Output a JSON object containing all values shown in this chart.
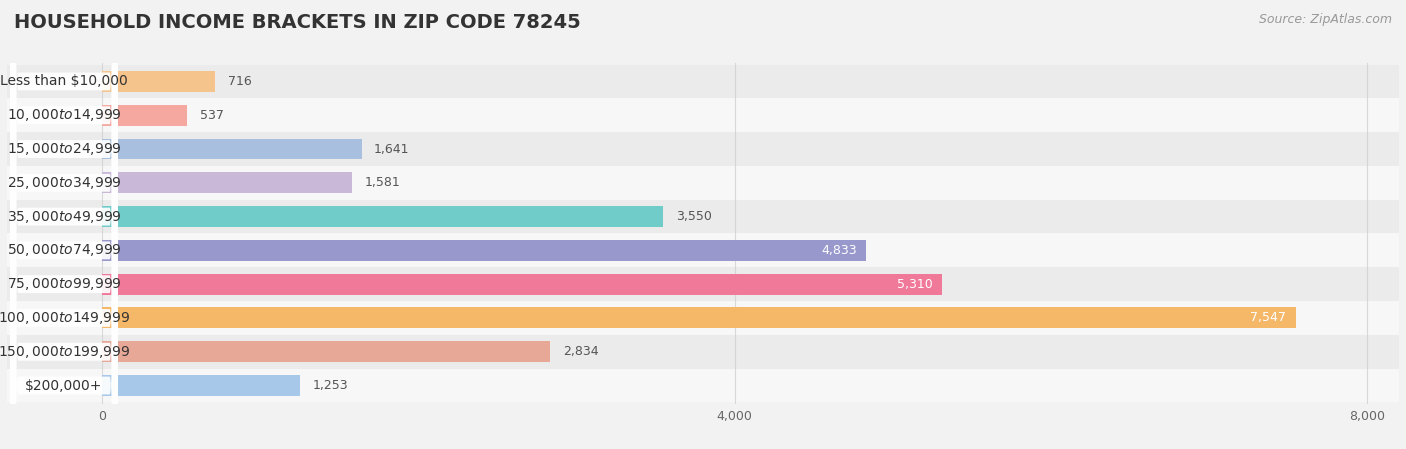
{
  "title": "HOUSEHOLD INCOME BRACKETS IN ZIP CODE 78245",
  "source": "Source: ZipAtlas.com",
  "categories": [
    "Less than $10,000",
    "$10,000 to $14,999",
    "$15,000 to $24,999",
    "$25,000 to $34,999",
    "$35,000 to $49,999",
    "$50,000 to $74,999",
    "$75,000 to $99,999",
    "$100,000 to $149,999",
    "$150,000 to $199,999",
    "$200,000+"
  ],
  "values": [
    716,
    537,
    1641,
    1581,
    3550,
    4833,
    5310,
    7547,
    2834,
    1253
  ],
  "bar_colors": [
    "#f5c48c",
    "#f5a8a0",
    "#a8bfe0",
    "#c9b8d8",
    "#70ccc8",
    "#9898cc",
    "#f07898",
    "#f5b868",
    "#e8a898",
    "#a8c8ea"
  ],
  "row_bg_colors": [
    "#eeeeee",
    "#f9f9f9"
  ],
  "xlim": [
    -600,
    8200
  ],
  "xticks": [
    0,
    4000,
    8000
  ],
  "xticklabels": [
    "0",
    "4,000",
    "8,000"
  ],
  "title_fontsize": 14,
  "source_fontsize": 9,
  "label_fontsize": 10,
  "value_fontsize": 9,
  "bar_height": 0.62,
  "background_color": "#f2f2f2",
  "grid_color": "#cccccc",
  "value_threshold": 4000
}
